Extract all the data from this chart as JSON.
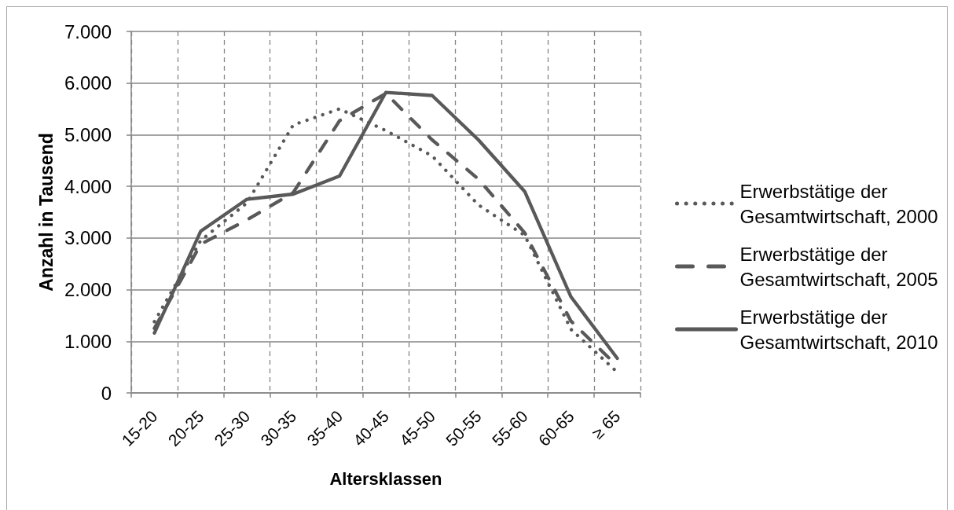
{
  "chart_data": {
    "type": "line",
    "xlabel": "Altersklassen",
    "ylabel": "Anzahl in Tausend",
    "categories": [
      "15-20",
      "20-25",
      "25-30",
      "30-35",
      "35-40",
      "40-45",
      "45-50",
      "50-55",
      "55-60",
      "60-65",
      "≥ 65"
    ],
    "series": [
      {
        "name": "Erwerbstätige der Gesamtwirtschaft, 2000",
        "color": "#595959",
        "line_style": "dotted",
        "values": [
          1380,
          2950,
          3680,
          5190,
          5500,
          5080,
          4590,
          3640,
          3050,
          1230,
          400
        ]
      },
      {
        "name": "Erwerbstätige der Gesamtwirtschaft, 2005",
        "color": "#595959",
        "line_style": "dashed",
        "values": [
          1250,
          2880,
          3350,
          3880,
          5270,
          5800,
          4900,
          4140,
          3100,
          1390,
          520
        ]
      },
      {
        "name": "Erwerbstätige der Gesamtwirtschaft, 2010",
        "color": "#595959",
        "line_style": "solid",
        "values": [
          1160,
          3130,
          3750,
          3850,
          4200,
          5820,
          5760,
          4900,
          3900,
          1860,
          670
        ]
      }
    ],
    "ylim": [
      0,
      7000
    ],
    "yticks": [
      0,
      {
        "value": 1000,
        "label": "1.000"
      },
      {
        "value": 2000,
        "label": "2.000"
      },
      {
        "value": 3000,
        "label": "3.000"
      },
      {
        "value": 4000,
        "label": "4.000"
      },
      {
        "value": 5000,
        "label": "5.000"
      },
      {
        "value": 6000,
        "label": "6.000"
      },
      {
        "value": 7000,
        "label": "7.000"
      }
    ],
    "grid": true,
    "legend": "right",
    "marker": "none"
  }
}
